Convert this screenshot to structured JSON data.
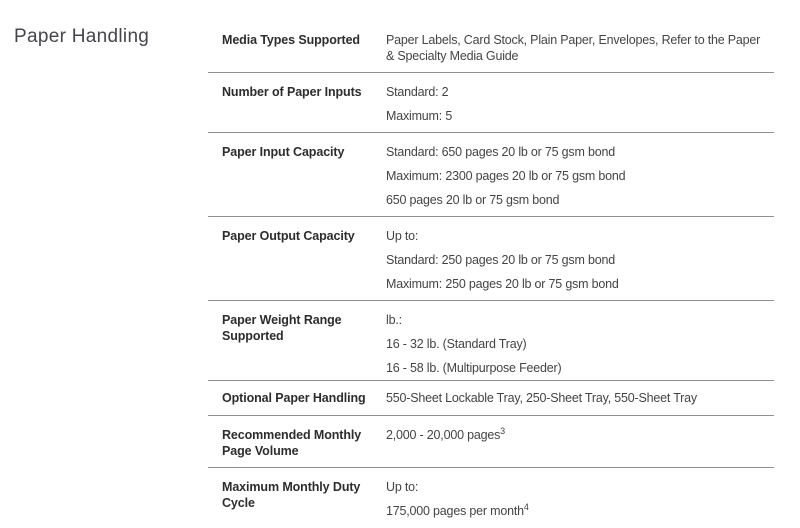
{
  "page": {
    "title": "Paper Handling"
  },
  "colors": {
    "background": "#ffffff",
    "heading_text": "#45454b",
    "label_text": "#2d2d2d",
    "value_text": "#444444",
    "divider": "#909090"
  },
  "table": {
    "rows": [
      {
        "label": "Media Types Supported",
        "values": [
          {
            "text": "Paper Labels, Card Stock, Plain Paper, Envelopes, Refer to the Paper"
          },
          {
            "text": "& Specialty Media Guide"
          }
        ]
      },
      {
        "label": "Number of Paper Inputs",
        "values": [
          {
            "text": "Standard: 2"
          },
          {
            "text": "Maximum: 5"
          }
        ]
      },
      {
        "label": "Paper Input Capacity",
        "values": [
          {
            "text": "Standard: 650 pages 20 lb or 75 gsm bond"
          },
          {
            "text": "Maximum: 2300 pages 20 lb or 75 gsm bond"
          },
          {
            "text": "650 pages 20 lb or 75 gsm bond"
          }
        ]
      },
      {
        "label": "Paper Output Capacity",
        "values": [
          {
            "text": "Up to:"
          },
          {
            "text": "Standard: 250 pages 20 lb or 75 gsm bond"
          },
          {
            "text": "Maximum: 250 pages 20 lb or 75 gsm bond"
          }
        ]
      },
      {
        "label": "Paper Weight Range Supported",
        "values": [
          {
            "text": "lb.:"
          },
          {
            "text": "16 - 32 lb. (Standard Tray)"
          },
          {
            "text": "16 - 58 lb. (Multipurpose Feeder)"
          }
        ]
      },
      {
        "label": "Optional Paper Handling",
        "values": [
          {
            "text": "550-Sheet Lockable Tray, 250-Sheet Tray, 550-Sheet Tray"
          }
        ]
      },
      {
        "label": "Recommended Monthly Page Volume",
        "values": [
          {
            "text": "2,000 - 20,000 pages",
            "sup": "3"
          }
        ]
      },
      {
        "label": "Maximum Monthly Duty Cycle",
        "values": [
          {
            "text": "Up to:"
          },
          {
            "text": "175,000 pages per month",
            "sup": "4"
          }
        ]
      }
    ]
  }
}
